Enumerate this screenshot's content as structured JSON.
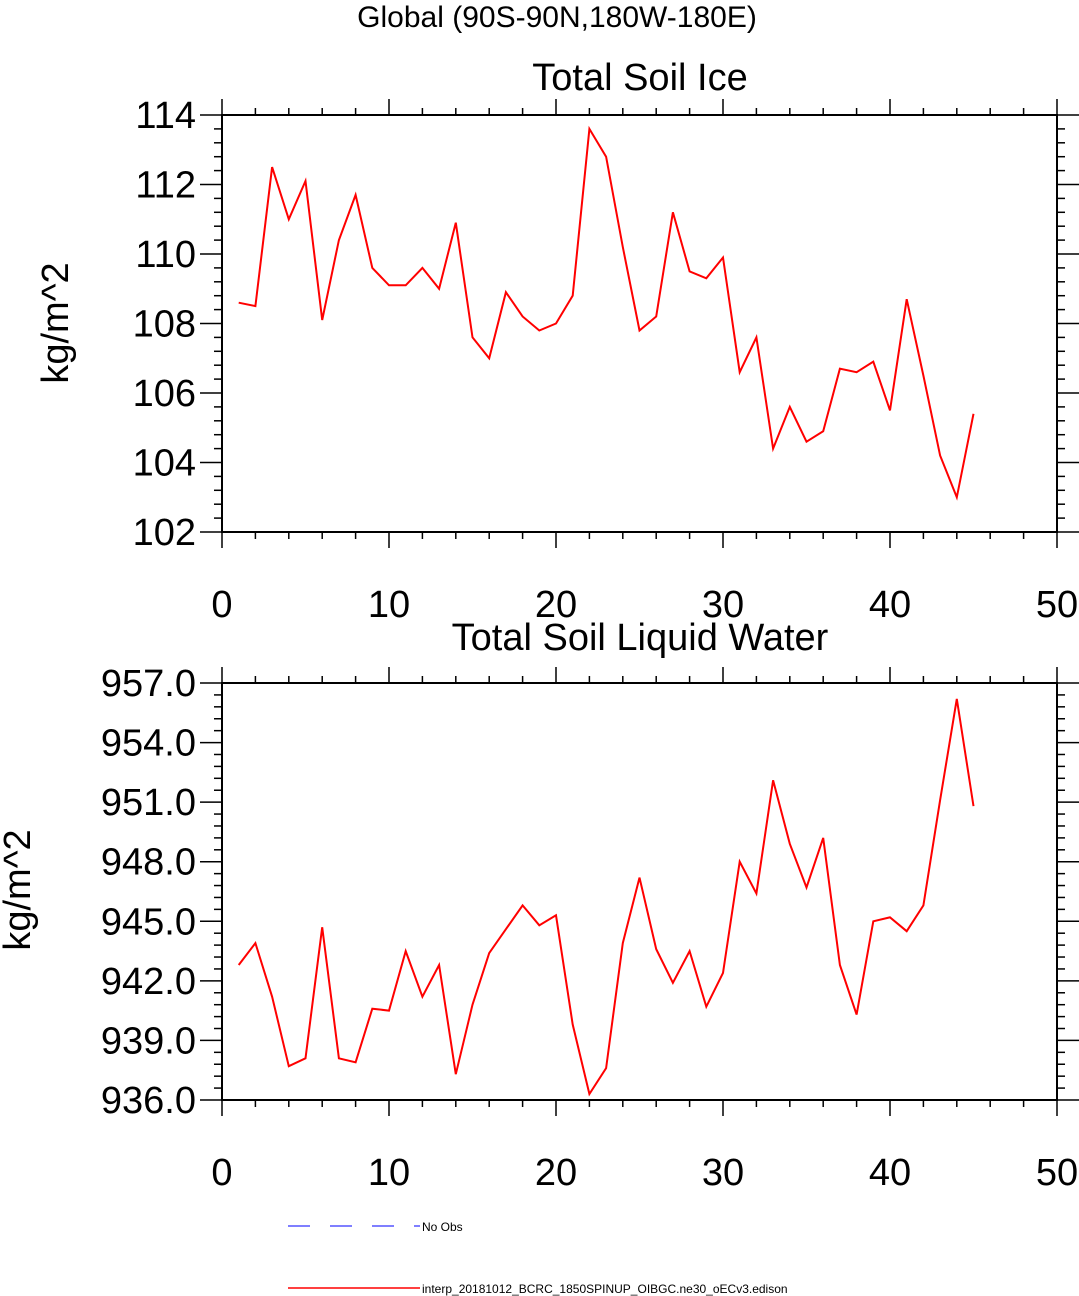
{
  "figure_title": "Global (90S-90N,180W-180E)",
  "chart_data": [
    {
      "type": "line",
      "title": "Total Soil Ice",
      "xlabel": "",
      "ylabel": "kg/m^2",
      "xlim": [
        0,
        50
      ],
      "ylim": [
        102,
        114
      ],
      "x_ticks": [
        0,
        10,
        20,
        30,
        40,
        50
      ],
      "y_ticks": [
        102,
        104,
        106,
        108,
        110,
        112,
        114
      ],
      "y_tick_labels": [
        "102",
        "104",
        "106",
        "108",
        "110",
        "112",
        "114"
      ],
      "x_tick_labels": [
        "0",
        "10",
        "20",
        "30",
        "40",
        "50"
      ],
      "series": [
        {
          "color": "#ff0000",
          "x": [
            1,
            2,
            3,
            4,
            5,
            6,
            7,
            8,
            9,
            10,
            11,
            12,
            13,
            14,
            15,
            16,
            17,
            18,
            19,
            20,
            21,
            22,
            23,
            24,
            25,
            26,
            27,
            28,
            29,
            30,
            31,
            32,
            33,
            34,
            35,
            36,
            37,
            38,
            39,
            40,
            41,
            42,
            43,
            44,
            45
          ],
          "values": [
            108.6,
            108.5,
            112.5,
            111.0,
            112.1,
            108.1,
            110.4,
            111.7,
            109.6,
            109.1,
            109.1,
            109.6,
            109.0,
            110.9,
            107.6,
            107.0,
            108.9,
            108.2,
            107.8,
            108.0,
            108.8,
            113.6,
            112.8,
            110.2,
            107.8,
            108.2,
            111.2,
            109.5,
            109.3,
            109.9,
            106.6,
            107.6,
            104.4,
            105.6,
            104.6,
            104.9,
            106.7,
            106.6,
            106.9,
            105.5,
            108.7,
            106.5,
            104.2,
            103.0,
            105.4
          ]
        }
      ]
    },
    {
      "type": "line",
      "title": "Total Soil Liquid Water",
      "xlabel": "",
      "ylabel": "kg/m^2",
      "xlim": [
        0,
        50
      ],
      "ylim": [
        936,
        957
      ],
      "x_ticks": [
        0,
        10,
        20,
        30,
        40,
        50
      ],
      "y_ticks": [
        936,
        939,
        942,
        945,
        948,
        951,
        954,
        957
      ],
      "y_tick_labels": [
        "936.0",
        "939.0",
        "942.0",
        "945.0",
        "948.0",
        "951.0",
        "954.0",
        "957.0"
      ],
      "x_tick_labels": [
        "0",
        "10",
        "20",
        "30",
        "40",
        "50"
      ],
      "series": [
        {
          "color": "#ff0000",
          "x": [
            1,
            2,
            3,
            4,
            5,
            6,
            7,
            8,
            9,
            10,
            11,
            12,
            13,
            14,
            15,
            16,
            17,
            18,
            19,
            20,
            21,
            22,
            23,
            24,
            25,
            26,
            27,
            28,
            29,
            30,
            31,
            32,
            33,
            34,
            35,
            36,
            37,
            38,
            39,
            40,
            41,
            42,
            43,
            44,
            45
          ],
          "values": [
            942.8,
            943.9,
            941.2,
            937.7,
            938.1,
            944.7,
            938.1,
            937.9,
            940.6,
            940.5,
            943.5,
            941.2,
            942.8,
            937.3,
            940.8,
            943.4,
            944.6,
            945.8,
            944.8,
            945.3,
            939.8,
            936.3,
            937.6,
            943.9,
            947.2,
            943.6,
            941.9,
            943.5,
            940.7,
            942.4,
            948.0,
            946.4,
            952.1,
            948.9,
            946.7,
            949.2,
            942.8,
            940.3,
            945.0,
            945.2,
            944.5,
            945.8,
            951.1,
            956.2,
            950.8
          ]
        }
      ]
    }
  ],
  "legend": [
    {
      "label": "No Obs",
      "color": "#5555ff",
      "style": "dashed"
    },
    {
      "label": "interp_20181012_BCRC_1850SPINUP_OIBGC.ne30_oECv3.edison",
      "color": "#ff0000",
      "style": "solid"
    }
  ]
}
